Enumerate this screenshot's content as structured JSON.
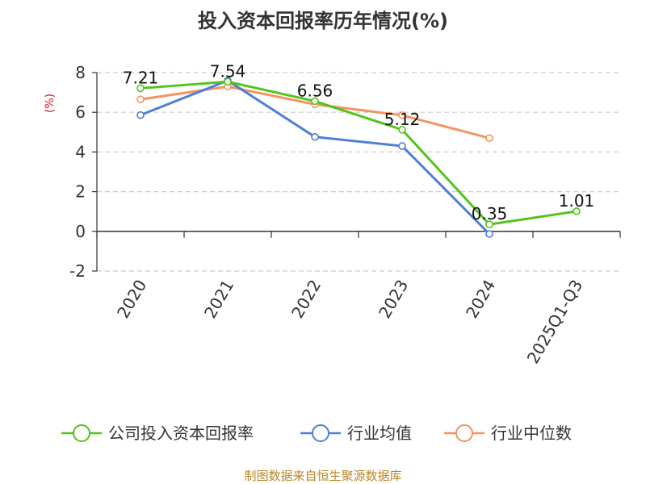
{
  "chart_data": {
    "type": "line",
    "title": "投入资本回报率历年情况(%)",
    "ylabel": "(%)",
    "categories": [
      "2020",
      "2021",
      "2022",
      "2023",
      "2024",
      "2025Q1-Q3"
    ],
    "ylim": [
      -2,
      8
    ],
    "yticks": [
      8,
      6,
      4,
      2,
      0,
      -2
    ],
    "ytick_labels": [
      "8",
      "6",
      "4",
      "2",
      "0",
      "-2"
    ],
    "grid": true,
    "legend_position": "bottom",
    "series": [
      {
        "name": "公司投入资本回报率",
        "color": "#52c41a",
        "values": [
          7.21,
          7.54,
          6.56,
          5.12,
          0.35,
          1.01
        ],
        "labels": [
          "7.21",
          "7.54",
          "6.56",
          "5.12",
          "0.35",
          "1.01"
        ]
      },
      {
        "name": "行业均值",
        "color": "#4e7fd6",
        "values": [
          5.86,
          7.6,
          4.76,
          4.3,
          -0.13,
          null
        ]
      },
      {
        "name": "行业中位数",
        "color": "#f59260",
        "values": [
          6.65,
          7.3,
          6.4,
          5.85,
          4.7,
          null
        ]
      }
    ],
    "source": "制图数据来自恒生聚源数据库"
  }
}
